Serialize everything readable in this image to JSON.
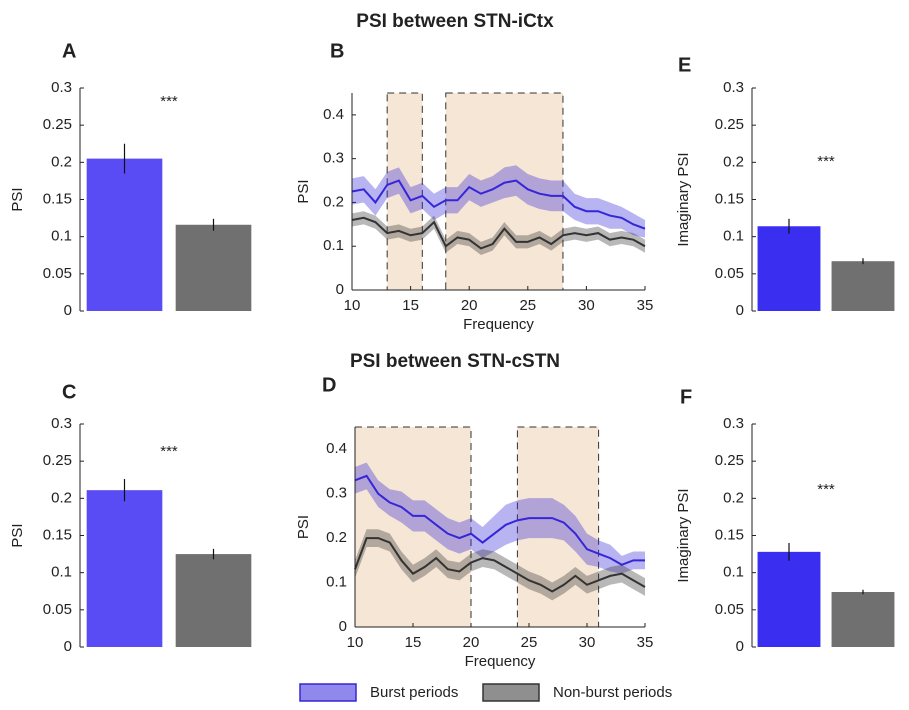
{
  "headings": [
    "PSI between STN-iCtx",
    "PSI between STN-cSTN"
  ],
  "chart_data": [
    {
      "type": "bar",
      "label": "A",
      "ylabel": "PSI",
      "annotation": "***",
      "categories": [
        null,
        null
      ],
      "values": [
        0.205,
        0.116
      ],
      "errors": [
        0.02,
        0.008
      ],
      "colors": [
        "#5a4cf4",
        "#707070"
      ],
      "ylim": [
        0,
        0.3
      ],
      "yticks": [
        0,
        0.05,
        0.1,
        0.15,
        0.2,
        0.25,
        0.3
      ]
    },
    {
      "type": "line",
      "label": "B",
      "xlabel": "Frequency",
      "ylabel": "PSI",
      "x": [
        10,
        11,
        12,
        13,
        14,
        15,
        16,
        17,
        18,
        19,
        20,
        21,
        22,
        23,
        24,
        25,
        26,
        27,
        28,
        29,
        30,
        31,
        32,
        33,
        34,
        35
      ],
      "series": [
        {
          "name": "Burst periods",
          "color": "#3526d8",
          "values": [
            0.225,
            0.23,
            0.2,
            0.24,
            0.25,
            0.205,
            0.215,
            0.19,
            0.205,
            0.205,
            0.235,
            0.22,
            0.23,
            0.245,
            0.25,
            0.23,
            0.22,
            0.215,
            0.215,
            0.19,
            0.18,
            0.18,
            0.17,
            0.165,
            0.15,
            0.14
          ],
          "errors": [
            0.03,
            0.03,
            0.03,
            0.03,
            0.03,
            0.03,
            0.03,
            0.03,
            0.03,
            0.03,
            0.03,
            0.03,
            0.03,
            0.035,
            0.035,
            0.035,
            0.035,
            0.035,
            0.035,
            0.03,
            0.03,
            0.03,
            0.03,
            0.025,
            0.025,
            0.02
          ]
        },
        {
          "name": "Non-burst periods",
          "color": "#333333",
          "values": [
            0.16,
            0.165,
            0.155,
            0.13,
            0.135,
            0.125,
            0.13,
            0.155,
            0.1,
            0.12,
            0.115,
            0.095,
            0.105,
            0.14,
            0.11,
            0.11,
            0.12,
            0.105,
            0.125,
            0.13,
            0.125,
            0.13,
            0.115,
            0.12,
            0.115,
            0.1
          ],
          "errors": [
            0.015,
            0.015,
            0.015,
            0.015,
            0.015,
            0.015,
            0.015,
            0.015,
            0.015,
            0.015,
            0.015,
            0.015,
            0.015,
            0.015,
            0.015,
            0.015,
            0.015,
            0.015,
            0.015,
            0.015,
            0.015,
            0.015,
            0.015,
            0.015,
            0.015,
            0.015
          ]
        }
      ],
      "shaded_regions": [
        [
          13,
          16
        ],
        [
          18,
          28
        ]
      ],
      "xlim": [
        10,
        35
      ],
      "xticks": [
        10,
        15,
        20,
        25,
        30,
        35
      ],
      "ylim": [
        0,
        0.45
      ],
      "yticks": [
        0,
        0.1,
        0.2,
        0.3,
        0.4
      ]
    },
    {
      "type": "bar",
      "label": "E",
      "ylabel": "Imaginary PSI",
      "annotation": "***",
      "categories": [
        null,
        null
      ],
      "values": [
        0.114,
        0.067
      ],
      "errors": [
        0.01,
        0.004
      ],
      "colors": [
        "#3a2ef0",
        "#707070"
      ],
      "ylim": [
        0,
        0.3
      ],
      "yticks": [
        0,
        0.05,
        0.1,
        0.15,
        0.2,
        0.25,
        0.3
      ]
    },
    {
      "type": "bar",
      "label": "C",
      "ylabel": "PSI",
      "annotation": "***",
      "categories": [
        null,
        null
      ],
      "values": [
        0.211,
        0.125
      ],
      "errors": [
        0.015,
        0.007
      ],
      "colors": [
        "#5a4cf4",
        "#707070"
      ],
      "ylim": [
        0,
        0.3
      ],
      "yticks": [
        0,
        0.05,
        0.1,
        0.15,
        0.2,
        0.25,
        0.3
      ]
    },
    {
      "type": "line",
      "label": "D",
      "xlabel": "Frequency",
      "ylabel": "PSI",
      "x": [
        10,
        11,
        12,
        13,
        14,
        15,
        16,
        17,
        18,
        19,
        20,
        21,
        22,
        23,
        24,
        25,
        26,
        27,
        28,
        29,
        30,
        31,
        32,
        33,
        34,
        35
      ],
      "series": [
        {
          "name": "Burst periods",
          "color": "#3526d8",
          "values": [
            0.33,
            0.34,
            0.3,
            0.28,
            0.27,
            0.25,
            0.25,
            0.23,
            0.21,
            0.2,
            0.21,
            0.19,
            0.21,
            0.23,
            0.24,
            0.245,
            0.245,
            0.245,
            0.235,
            0.21,
            0.175,
            0.165,
            0.155,
            0.14,
            0.15,
            0.15
          ],
          "errors": [
            0.03,
            0.03,
            0.03,
            0.03,
            0.035,
            0.035,
            0.035,
            0.035,
            0.035,
            0.035,
            0.035,
            0.035,
            0.04,
            0.045,
            0.045,
            0.045,
            0.045,
            0.045,
            0.04,
            0.04,
            0.035,
            0.03,
            0.03,
            0.02,
            0.02,
            0.02
          ]
        },
        {
          "name": "Non-burst periods",
          "color": "#333333",
          "values": [
            0.13,
            0.2,
            0.2,
            0.19,
            0.15,
            0.12,
            0.135,
            0.155,
            0.13,
            0.125,
            0.145,
            0.155,
            0.15,
            0.135,
            0.12,
            0.105,
            0.095,
            0.08,
            0.095,
            0.115,
            0.095,
            0.105,
            0.115,
            0.12,
            0.105,
            0.09
          ],
          "errors": [
            0.02,
            0.02,
            0.02,
            0.02,
            0.02,
            0.02,
            0.02,
            0.02,
            0.02,
            0.02,
            0.02,
            0.02,
            0.02,
            0.02,
            0.02,
            0.02,
            0.02,
            0.02,
            0.02,
            0.02,
            0.02,
            0.02,
            0.02,
            0.02,
            0.02,
            0.02
          ]
        }
      ],
      "shaded_regions": [
        [
          10,
          20
        ],
        [
          24,
          31
        ]
      ],
      "xlim": [
        10,
        35
      ],
      "xticks": [
        10,
        15,
        20,
        25,
        30,
        35
      ],
      "ylim": [
        0,
        0.45
      ],
      "yticks": [
        0,
        0.1,
        0.2,
        0.3,
        0.4
      ]
    },
    {
      "type": "bar",
      "label": "F",
      "ylabel": "Imaginary PSI",
      "annotation": "***",
      "categories": [
        null,
        null
      ],
      "values": [
        0.128,
        0.074
      ],
      "errors": [
        0.012,
        0.003
      ],
      "colors": [
        "#3a2ef0",
        "#707070"
      ],
      "ylim": [
        0,
        0.3
      ],
      "yticks": [
        0,
        0.05,
        0.1,
        0.15,
        0.2,
        0.25,
        0.3
      ]
    }
  ]
}
